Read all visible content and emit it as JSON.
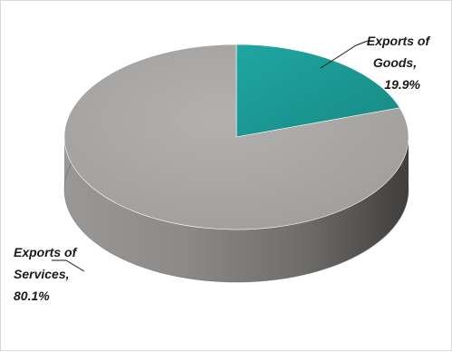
{
  "chart_data": {
    "type": "pie",
    "title": "",
    "slices": [
      {
        "name": "Exports of Goods",
        "value": 19.9,
        "label_lines": [
          "Exports of",
          "Goods,",
          "19.9%"
        ],
        "color": "#1a9a96"
      },
      {
        "name": "Exports of Services",
        "value": 80.1,
        "label_lines": [
          "Exports of",
          "Services,",
          "80.1%"
        ],
        "color": "#a6a4a2"
      }
    ],
    "style": "3d",
    "legend": "none"
  }
}
